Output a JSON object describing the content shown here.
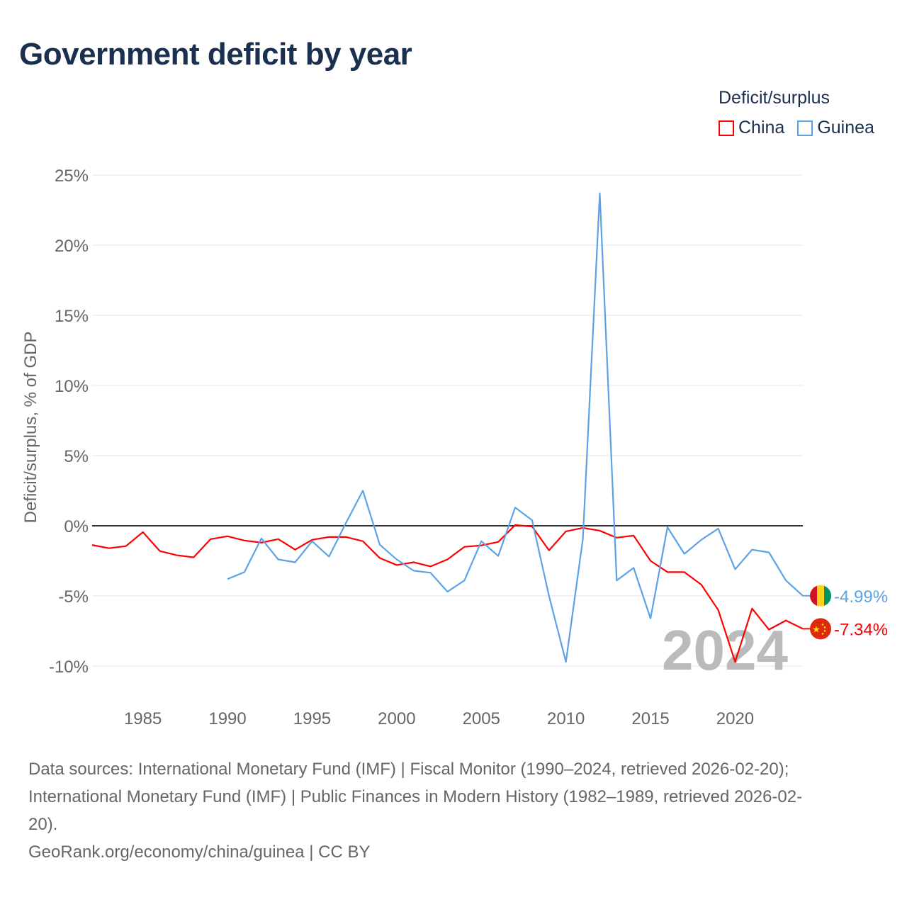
{
  "title": "Government deficit by year",
  "legend": {
    "title": "Deficit/surplus",
    "items": [
      {
        "name": "China",
        "color": "#ff0000"
      },
      {
        "name": "Guinea",
        "color": "#5ba3e6"
      }
    ]
  },
  "chart_data": {
    "type": "line",
    "title": "Government deficit by year",
    "xlabel": "",
    "ylabel": "Deficit/surplus, % of GDP",
    "xlim": [
      1982,
      2024
    ],
    "ylim": [
      -10,
      25
    ],
    "yticks": [
      25,
      20,
      15,
      10,
      5,
      0,
      -5,
      -10
    ],
    "ytick_labels": [
      "25%",
      "20%",
      "15%",
      "10%",
      "5%",
      "0%",
      "-5%",
      "-10%"
    ],
    "xticks": [
      1985,
      1990,
      1995,
      2000,
      2005,
      2010,
      2015,
      2020
    ],
    "xtick_labels": [
      "1985",
      "1990",
      "1995",
      "2000",
      "2005",
      "2010",
      "2015",
      "2020"
    ],
    "grid": true,
    "legend_position": "top-right",
    "year_watermark": "2024",
    "series": [
      {
        "name": "China",
        "color": "#ff0000",
        "end_label": "-7.34%",
        "x_start": 1982,
        "values": [
          -1.37,
          -1.6,
          -1.45,
          -0.45,
          -1.8,
          -2.1,
          -2.25,
          -0.95,
          -0.75,
          -1.05,
          -1.2,
          -0.95,
          -1.7,
          -1.0,
          -0.8,
          -0.8,
          -1.1,
          -2.3,
          -2.8,
          -2.6,
          -2.9,
          -2.4,
          -1.5,
          -1.4,
          -1.15,
          0.05,
          -0.05,
          -1.75,
          -0.4,
          -0.15,
          -0.35,
          -0.85,
          -0.7,
          -2.5,
          -3.3,
          -3.3,
          -4.2,
          -6.0,
          -9.7,
          -5.9,
          -7.4,
          -6.75,
          -7.34
        ]
      },
      {
        "name": "Guinea",
        "color": "#5ba3e6",
        "end_label": "-4.99%",
        "x_start": 1990,
        "values": [
          -3.8,
          -3.3,
          -0.9,
          -2.4,
          -2.6,
          -1.1,
          -2.2,
          0.2,
          2.5,
          -1.35,
          -2.4,
          -3.2,
          -3.35,
          -4.7,
          -3.9,
          -1.1,
          -2.15,
          1.3,
          0.4,
          -5.0,
          -9.7,
          -0.95,
          23.7,
          -3.9,
          -3.0,
          -6.6,
          -0.1,
          -2.0,
          -1.0,
          -0.2,
          -3.1,
          -1.7,
          -1.9,
          -3.9,
          -4.99
        ]
      }
    ]
  },
  "sources": {
    "line1": "Data sources: International Monetary Fund (IMF) | Fiscal Monitor (1990–2024, retrieved 2026-02-20);",
    "line2": "International Monetary Fund (IMF) | Public Finances in Modern History (1982–1989, retrieved 2026-02-",
    "line3": "20).",
    "line4": "GeoRank.org/economy/china/guinea | CC BY"
  }
}
